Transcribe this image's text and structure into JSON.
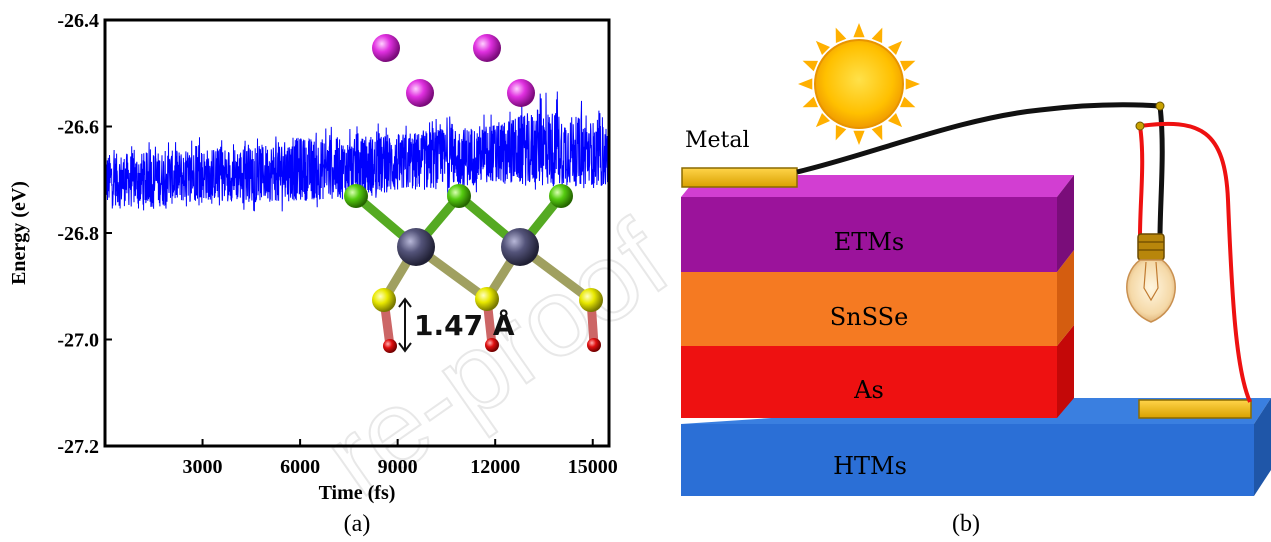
{
  "panel_a": {
    "caption": "(a)",
    "bond_length_label": "1.47 Å",
    "atom_colors": {
      "magenta": "#d81fd8",
      "green": "#44bb00",
      "tin": "#4a4a6a",
      "sulfur": "#dddd00",
      "oxygen": "#dd0000"
    }
  },
  "panel_b": {
    "caption": "(b)",
    "metal_label": "Metal",
    "layers": [
      {
        "key": "etm",
        "label": "ETMs",
        "color": "#9b139b"
      },
      {
        "key": "sns",
        "label": "SnSSe",
        "color": "#f57a22"
      },
      {
        "key": "as",
        "label": "As",
        "color": "#ee1111"
      },
      {
        "key": "htm",
        "label": "HTMs",
        "color": "#2b6fd6"
      }
    ],
    "wire_colors": {
      "black": "#111111",
      "red": "#ee1111"
    }
  },
  "watermark": "re-proof",
  "chart_data": [
    {
      "type": "line",
      "title": "",
      "xlabel": "Time (fs)",
      "ylabel": "Energy (eV)",
      "xlim": [
        0,
        15500
      ],
      "ylim": [
        -27.2,
        -26.4
      ],
      "xticks": [
        3000,
        6000,
        9000,
        12000,
        15000
      ],
      "yticks": [
        -26.4,
        -26.6,
        -26.8,
        -27.0,
        -27.2
      ],
      "xtick_labels": [
        "3000",
        "6000",
        "9000",
        "12000",
        "15000"
      ],
      "ytick_labels": [
        "-26.4",
        "-26.6",
        "-26.8",
        "-27.0",
        "-27.2"
      ],
      "grid": false,
      "series": [
        {
          "color": "#0000ff",
          "x": [
            0,
            1500,
            3000,
            4500,
            6000,
            7500,
            9000,
            10500,
            12000,
            13500,
            15000,
            15500
          ],
          "y_center": [
            -26.7,
            -26.7,
            -26.69,
            -26.69,
            -26.68,
            -26.68,
            -26.67,
            -26.66,
            -26.65,
            -26.64,
            -26.65,
            -26.66
          ],
          "y_low": [
            -26.76,
            -26.76,
            -26.75,
            -26.76,
            -26.76,
            -26.75,
            -26.74,
            -26.73,
            -26.72,
            -26.72,
            -26.72,
            -26.73
          ],
          "y_high": [
            -26.63,
            -26.62,
            -26.62,
            -26.62,
            -26.6,
            -26.6,
            -26.59,
            -26.58,
            -26.57,
            -26.52,
            -26.56,
            -26.57
          ]
        }
      ]
    }
  ]
}
